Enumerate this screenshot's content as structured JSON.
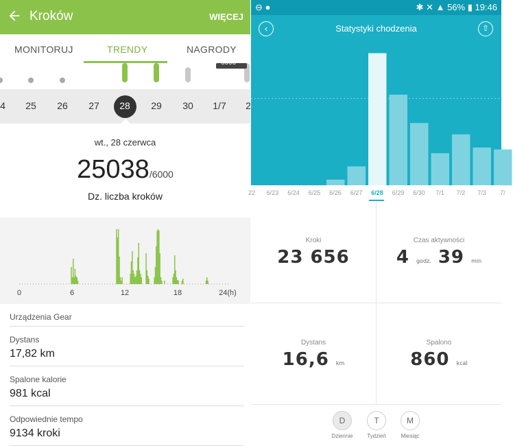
{
  "left": {
    "header": {
      "back_icon": "arrow-left-icon",
      "title": "Kroków",
      "more": "WIĘCEJ",
      "bg": "#8bc34a"
    },
    "tabs": [
      {
        "label": "MONITORUJ",
        "active": false
      },
      {
        "label": "TRENDY",
        "active": true
      },
      {
        "label": "NAGRODY",
        "active": false
      }
    ],
    "goal_badge": "6000",
    "day_strip": {
      "days": [
        "4",
        "25",
        "26",
        "27",
        "28",
        "29",
        "30",
        "1/7",
        "2"
      ],
      "selected": "28"
    },
    "date_label": "wt., 28 czerwca",
    "steps": {
      "value": "25038",
      "goal": "/6000",
      "label": "Dz. liczba kroków"
    },
    "hourly_axis": [
      "0",
      "6",
      "12",
      "18",
      "24(h)"
    ],
    "hourly_values": [
      0,
      0,
      0,
      0,
      0,
      0,
      0,
      0,
      0,
      0,
      0,
      0,
      0,
      0,
      0,
      0,
      0,
      0,
      0,
      0,
      0,
      0,
      0,
      0,
      0,
      0,
      0,
      0,
      0,
      0,
      0,
      0,
      0,
      0,
      0,
      0,
      0,
      0,
      0,
      0,
      0,
      0,
      0,
      0,
      0,
      0,
      0,
      0,
      0,
      0,
      0,
      0,
      0,
      0,
      0,
      0,
      25,
      10,
      37,
      10,
      22,
      12,
      10,
      5,
      0,
      0,
      0,
      0,
      0,
      0,
      0,
      0,
      0,
      0,
      0,
      0,
      0,
      0,
      0,
      0,
      0,
      0,
      0,
      0,
      0,
      0,
      0,
      0,
      0,
      0,
      0,
      0,
      0,
      0,
      0,
      0,
      0,
      0,
      0,
      0,
      0,
      0,
      0,
      0,
      0,
      80,
      68,
      80,
      40,
      10,
      5,
      10,
      0,
      0,
      0,
      0,
      0,
      0,
      0,
      0,
      15,
      33,
      48,
      20,
      15,
      10,
      12,
      20,
      39,
      60,
      20,
      15,
      10,
      0,
      0,
      0,
      0,
      45,
      20,
      12,
      8,
      0,
      0,
      0,
      0,
      0,
      10,
      25,
      55,
      78,
      80,
      78,
      45,
      10,
      5,
      0,
      0,
      5,
      0,
      0,
      0,
      0,
      0,
      0,
      0,
      0,
      10,
      15,
      42,
      20,
      10,
      6,
      5,
      0,
      0,
      0,
      5,
      8,
      0,
      0,
      0,
      0,
      0,
      0,
      0,
      0,
      0,
      0,
      0,
      0,
      0,
      0,
      0,
      0,
      0,
      0,
      0,
      0,
      0,
      0,
      0,
      0,
      5,
      10,
      5,
      0,
      0,
      0,
      0,
      0,
      0,
      0,
      0,
      0,
      0,
      0,
      0,
      0,
      0,
      0,
      0,
      0,
      0,
      0,
      0,
      0,
      0,
      0,
      0
    ],
    "gear_label": "Urządzenia Gear",
    "rows": [
      {
        "label": "Dystans",
        "value": "17,82 km"
      },
      {
        "label": "Spalone kalorie",
        "value": "981 kcal"
      },
      {
        "label": "Odpowiednie tempo",
        "value": "9134 kroki"
      }
    ]
  },
  "right": {
    "status": {
      "left_icons": "⊖ ●",
      "right_text": "✱ ✕ ▲ 56% ▮ 19:46"
    },
    "header": {
      "title": "Statystyki chodzenia",
      "back_icon": "chevron-left-icon",
      "share_icon": "upload-icon",
      "bg": "#1aafc5"
    },
    "chart_data": {
      "type": "bar",
      "categories": [
        "22",
        "6/23",
        "6/24",
        "6/25",
        "6/26",
        "6/27",
        "6/28",
        "6/29",
        "6/30",
        "7/1",
        "7/2",
        "7/3",
        "7/"
      ],
      "values": [
        0,
        0,
        0,
        0,
        1500,
        5000,
        35000,
        24000,
        16500,
        8500,
        13500,
        10000,
        9500
      ],
      "selected": "6/28",
      "ylim": [
        0,
        36000
      ],
      "goal_line": 23000
    },
    "stats": {
      "steps": {
        "label": "Kroki",
        "value": "23 656"
      },
      "active": {
        "label": "Czas aktywności",
        "hours": "4",
        "hours_unit": "godz.",
        "minutes": "39",
        "minutes_unit": "min"
      },
      "distance": {
        "label": "Dystans",
        "value": "16,6",
        "unit": "km"
      },
      "burned": {
        "label": "Spalono",
        "value": "860",
        "unit": "kcal"
      }
    },
    "periods": [
      {
        "short": "D",
        "label": "Dziennie",
        "selected": true
      },
      {
        "short": "T",
        "label": "Tydzień",
        "selected": false
      },
      {
        "short": "M",
        "label": "Miesiąc",
        "selected": false
      }
    ]
  }
}
